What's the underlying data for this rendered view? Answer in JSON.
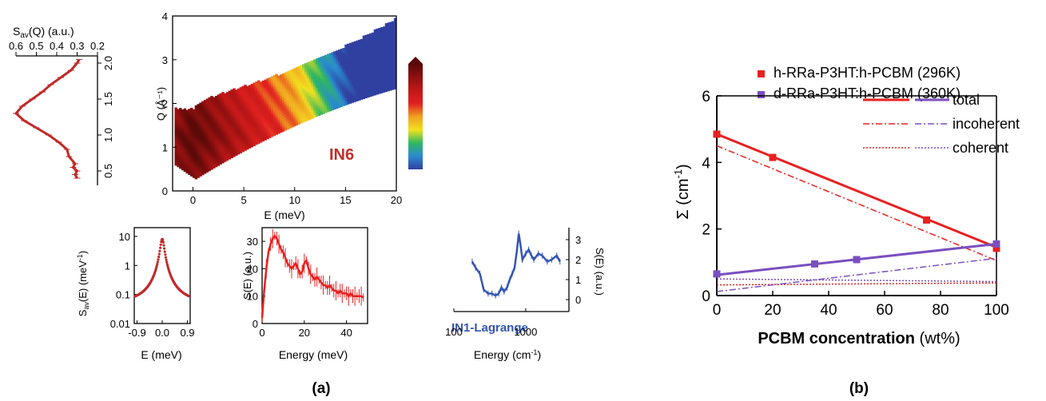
{
  "panel_labels": {
    "a": "(a)",
    "b": "(b)"
  },
  "chart_data": [
    {
      "id": "map",
      "type": "heatmap",
      "xlabel": "E (meV)",
      "ylabel": "Q (Å⁻¹)",
      "xlim": [
        -2,
        20
      ],
      "ylim": [
        0,
        4
      ],
      "xticks": [
        "0",
        "5",
        "10",
        "15",
        "20"
      ],
      "yticks": [
        "0",
        "1",
        "2",
        "3",
        "4"
      ],
      "annotation": "IN6",
      "colorbar": [
        "#3040a0",
        "#2a8ad0",
        "#2fb860",
        "#f2e020",
        "#f0a020",
        "#e02020",
        "#c01818",
        "#901010",
        "#5a0a08"
      ]
    },
    {
      "id": "sq",
      "type": "line",
      "title": "S_av(Q) (a.u.)",
      "xlim": [
        0.2,
        0.6
      ],
      "ylim": [
        0.3,
        2.1
      ],
      "xticks": [
        "0.6",
        "0.5",
        "0.4",
        "0.3",
        "0.2"
      ],
      "yticks": [
        "0.5",
        "1.0",
        "1.5",
        "2.0"
      ],
      "q": [
        0.4,
        0.45,
        0.5,
        0.55,
        0.6,
        0.7,
        0.8,
        0.9,
        1.0,
        1.1,
        1.2,
        1.3,
        1.4,
        1.5,
        1.6,
        1.7,
        1.8,
        1.9,
        2.0,
        2.05
      ],
      "s": [
        0.3,
        0.31,
        0.3,
        0.32,
        0.31,
        0.34,
        0.35,
        0.39,
        0.44,
        0.5,
        0.56,
        0.6,
        0.57,
        0.52,
        0.47,
        0.43,
        0.38,
        0.33,
        0.3,
        0.29
      ]
    },
    {
      "id": "se",
      "type": "scatter",
      "xlabel": "E (meV)",
      "ylabel": "S_av(E) (meV⁻¹)",
      "xlim": [
        -1.0,
        1.0
      ],
      "ylim_log": [
        0.01,
        20
      ],
      "xticks": [
        "-0.9",
        "0.0",
        "0.9"
      ],
      "yticks": [
        "0.01",
        "0.1",
        "1",
        "10"
      ],
      "gamma": 0.07,
      "peak": 8.0,
      "background": 0.045
    },
    {
      "id": "ien",
      "type": "line",
      "xlabel": "Energy (meV)",
      "ylabel": "S(E) (a.u.)",
      "xlim": [
        0,
        50
      ],
      "ylim": [
        0,
        35
      ],
      "xticks": [
        "0",
        "20",
        "40"
      ],
      "yticks": [
        "0",
        "10",
        "20",
        "30"
      ],
      "x": [
        0,
        1,
        2,
        3,
        4,
        5,
        6,
        7,
        8,
        9,
        10,
        11,
        12,
        13,
        14,
        15,
        16,
        17,
        18,
        19,
        20,
        21,
        22,
        23,
        24,
        25,
        26,
        27,
        28,
        29,
        30,
        31,
        32,
        33,
        34,
        35,
        36,
        37,
        38,
        39,
        40,
        41,
        42,
        43,
        44,
        45,
        46,
        47,
        48
      ],
      "y": [
        2,
        12,
        20,
        26,
        29,
        31,
        32,
        31,
        29,
        27,
        26,
        24,
        22,
        21,
        20,
        21,
        22,
        20,
        18,
        19,
        22,
        23,
        20,
        18,
        17,
        16,
        17,
        16,
        15,
        14,
        14,
        13,
        14,
        13,
        12,
        12,
        11,
        12,
        11,
        11,
        11,
        10,
        11,
        10,
        10,
        10,
        10,
        10,
        9.5
      ]
    },
    {
      "id": "lag",
      "type": "line",
      "xlabel": "Energy (cm⁻¹)",
      "ylabel": "S(E) (a.u.)",
      "annotation": "IN1-Lagrange",
      "xlim_log": [
        100,
        4000
      ],
      "ylim": [
        -0.6,
        3.6
      ],
      "xticks": [
        "100",
        "1000"
      ],
      "yticks": [
        "0",
        "1",
        "2",
        "3"
      ],
      "x": [
        180,
        200,
        230,
        260,
        300,
        340,
        380,
        420,
        460,
        500,
        550,
        600,
        650,
        700,
        750,
        800,
        850,
        900,
        1000,
        1100,
        1200,
        1300,
        1500,
        1700,
        2000,
        2300,
        2700,
        3000
      ],
      "y": [
        1.9,
        1.6,
        1.3,
        0.5,
        0.3,
        0.3,
        0.2,
        0.3,
        0.6,
        0.4,
        0.6,
        1.0,
        1.3,
        1.6,
        2.4,
        3.3,
        2.7,
        2.0,
        2.3,
        2.5,
        2.2,
        2.0,
        2.3,
        2.2,
        1.9,
        2.0,
        2.2,
        1.9
      ]
    },
    {
      "id": "sigma",
      "type": "line",
      "xlabel": "PCBM concentration (wt%)",
      "ylabel": "Σ (cm⁻¹)",
      "xlim": [
        0,
        100
      ],
      "ylim": [
        0,
        6
      ],
      "xticks": [
        "0",
        "20",
        "40",
        "60",
        "80",
        "100"
      ],
      "yticks": [
        "0",
        "2",
        "4",
        "6"
      ],
      "legend_position": "top-right",
      "colors": {
        "h": "#e82020",
        "d": "#7a4fc0"
      },
      "series": [
        {
          "name": "h-RRa-P3HT:h-PCBM (296K)",
          "x": [
            0,
            20,
            75,
            100
          ],
          "y": [
            4.85,
            4.15,
            2.27,
            1.42
          ]
        },
        {
          "name": "d-RRa-P3HT:h-PCBM (360K)",
          "x": [
            0,
            35,
            50,
            100
          ],
          "y": [
            0.65,
            0.95,
            1.08,
            1.55
          ]
        }
      ],
      "lines": {
        "h_total": [
          [
            0,
            4.85
          ],
          [
            100,
            1.45
          ]
        ],
        "h_incoherent": [
          [
            0,
            4.5
          ],
          [
            100,
            1.05
          ]
        ],
        "h_coherent": [
          [
            0,
            0.32
          ],
          [
            100,
            0.38
          ]
        ],
        "d_total": [
          [
            0,
            0.62
          ],
          [
            100,
            1.55
          ]
        ],
        "d_incoherent": [
          [
            0,
            0.12
          ],
          [
            100,
            1.12
          ]
        ],
        "d_coherent": [
          [
            0,
            0.5
          ],
          [
            100,
            0.42
          ]
        ]
      },
      "legend_lines": [
        "total",
        "incoherent",
        "coherent"
      ]
    }
  ]
}
